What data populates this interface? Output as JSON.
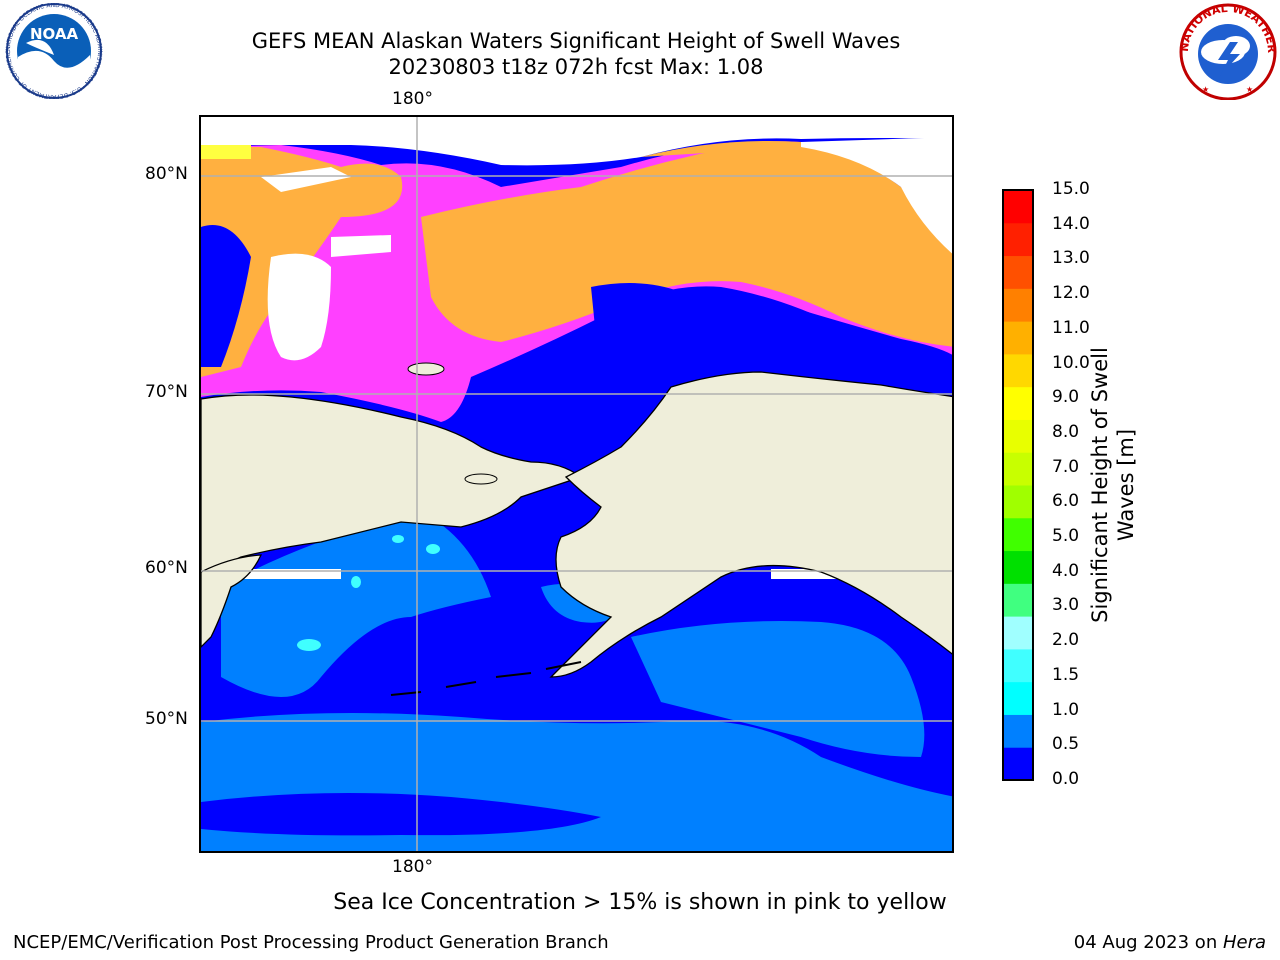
{
  "title": {
    "line1": "GEFS MEAN Alaskan Waters Significant Height of Swell Waves",
    "line2": "20230803 t18z 072h fcst   Max: 1.08"
  },
  "map": {
    "lon_label_top": "180°",
    "lon_label_bottom": "180°",
    "lat_labels": [
      "80°N",
      "70°N",
      "60°N",
      "50°N"
    ],
    "colors": {
      "land": "#efeeda",
      "deep_blue": "#0000ff",
      "mid_blue": "#0080ff",
      "cyan": "#40ffff",
      "ice_pink": "#ff40ff",
      "ice_orange": "#ffb040",
      "ice_yellow": "#ffff40",
      "no_data": "#ffffff"
    }
  },
  "colorbar": {
    "label": "Significant Height of Swell Waves [m]",
    "ticks": [
      "15.0",
      "14.0",
      "13.0",
      "12.0",
      "11.0",
      "10.0",
      "9.0",
      "8.0",
      "7.0",
      "6.0",
      "5.0",
      "4.0",
      "3.0",
      "2.0",
      "1.5",
      "1.0",
      "0.5",
      "0.0"
    ],
    "colors": [
      "#0000ff",
      "#0080ff",
      "#00ffff",
      "#40ffff",
      "#a0ffff",
      "#40ff80",
      "#00e000",
      "#40ff00",
      "#a0ff00",
      "#c8ff00",
      "#e8ff00",
      "#ffff00",
      "#ffd800",
      "#ffb000",
      "#ff8000",
      "#ff5000",
      "#ff2000",
      "#ff0000"
    ]
  },
  "logos": {
    "left_text": "NOAA",
    "left_ring": "NATIONAL OCEANIC AND ATMOSPHERIC ADMINISTRATION · U.S. DEPARTMENT OF COMMERCE",
    "right_ring": "NATIONAL WEATHER SERVICE"
  },
  "footer": {
    "note": "Sea Ice Concentration > 15% is shown in pink to yellow",
    "left": "NCEP/EMC/Verification Post Processing Product Generation Branch",
    "right_prefix": "04 Aug 2023 on ",
    "right_host": "Hera"
  }
}
